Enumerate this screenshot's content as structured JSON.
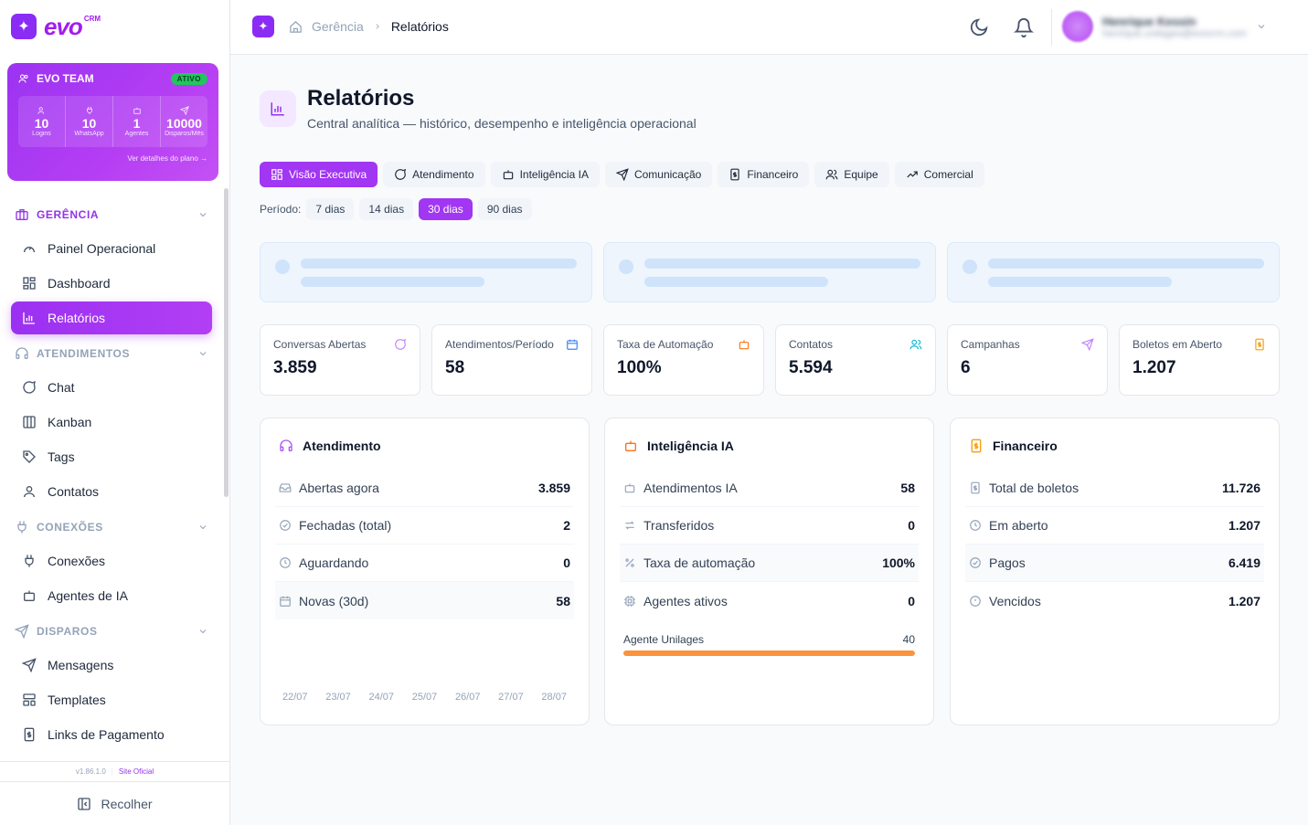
{
  "brand": {
    "logo_text": "evo",
    "logo_sup": "CRM"
  },
  "team": {
    "name": "EVO TEAM",
    "status": "ATIVO",
    "stats": [
      {
        "icon": "users-icon",
        "value": "10",
        "label": "Logins"
      },
      {
        "icon": "plug-icon",
        "value": "10",
        "label": "WhatsApp"
      },
      {
        "icon": "bot-icon",
        "value": "1",
        "label": "Agentes"
      },
      {
        "icon": "send-icon",
        "value": "10000",
        "label": "Disparos/Mês"
      }
    ],
    "link": "Ver detalhes do plano →"
  },
  "sidebar": {
    "sections": [
      {
        "label": "GERÊNCIA",
        "items": [
          "Painel Operacional",
          "Dashboard",
          "Relatórios"
        ]
      },
      {
        "label": "ATENDIMENTOS",
        "items": [
          "Chat",
          "Kanban",
          "Tags",
          "Contatos"
        ]
      },
      {
        "label": "CONEXÕES",
        "items": [
          "Conexões",
          "Agentes de IA"
        ]
      },
      {
        "label": "DISPAROS",
        "items": [
          "Mensagens",
          "Templates",
          "Links de Pagamento"
        ]
      }
    ],
    "version": "v1.86.1.0",
    "site_link": "Site Oficial",
    "collapse_label": "Recolher"
  },
  "topbar": {
    "breadcrumb_parent": "Gerência",
    "breadcrumb_current": "Relatórios",
    "user_name": "Henrique Kessin",
    "user_email": "henrique.unilages@evocrm.com"
  },
  "page": {
    "title": "Relatórios",
    "subtitle": "Central analítica — histórico, desempenho e inteligência operacional"
  },
  "tabs": [
    "Visão Executiva",
    "Atendimento",
    "Inteligência IA",
    "Comunicação",
    "Financeiro",
    "Equipe",
    "Comercial"
  ],
  "period": {
    "label": "Período:",
    "options": [
      "7 dias",
      "14 dias",
      "30 dias",
      "90 dias"
    ],
    "selected": "30 dias"
  },
  "kpis": [
    {
      "label": "Conversas Abertas",
      "value": "3.859",
      "icon": "message-circle-icon",
      "color": "#c084fc"
    },
    {
      "label": "Atendimentos/Período",
      "value": "58",
      "icon": "calendar-icon",
      "color": "#3b82f6"
    },
    {
      "label": "Taxa de Automação",
      "value": "100%",
      "icon": "bot-icon",
      "color": "#f97316"
    },
    {
      "label": "Contatos",
      "value": "5.594",
      "icon": "users-icon",
      "color": "#06b6d4"
    },
    {
      "label": "Campanhas",
      "value": "6",
      "icon": "send-icon",
      "color": "#c084fc"
    },
    {
      "label": "Boletos em Aberto",
      "value": "1.207",
      "icon": "receipt-icon",
      "color": "#f59e0b"
    }
  ],
  "panels": {
    "atendimento": {
      "title": "Atendimento",
      "rows": [
        {
          "label": "Abertas agora",
          "value": "3.859"
        },
        {
          "label": "Fechadas (total)",
          "value": "2"
        },
        {
          "label": "Aguardando",
          "value": "0"
        },
        {
          "label": "Novas (30d)",
          "value": "58"
        }
      ],
      "dates": [
        "22/07",
        "23/07",
        "24/07",
        "25/07",
        "26/07",
        "27/07",
        "28/07"
      ]
    },
    "ia": {
      "title": "Inteligência IA",
      "rows": [
        {
          "label": "Atendimentos IA",
          "value": "58"
        },
        {
          "label": "Transferidos",
          "value": "0"
        },
        {
          "label": "Taxa de automação",
          "value": "100%"
        },
        {
          "label": "Agentes ativos",
          "value": "0"
        }
      ],
      "agent": {
        "name": "Agente Unilages",
        "value": "40",
        "fill_fraction": 1.0
      }
    },
    "financeiro": {
      "title": "Financeiro",
      "rows": [
        {
          "label": "Total de boletos",
          "value": "11.726"
        },
        {
          "label": "Em aberto",
          "value": "1.207"
        },
        {
          "label": "Pagos",
          "value": "6.419"
        },
        {
          "label": "Vencidos",
          "value": "1.207"
        }
      ]
    }
  },
  "colors": {
    "accent": "#a136f3",
    "orange": "#fb923c"
  }
}
